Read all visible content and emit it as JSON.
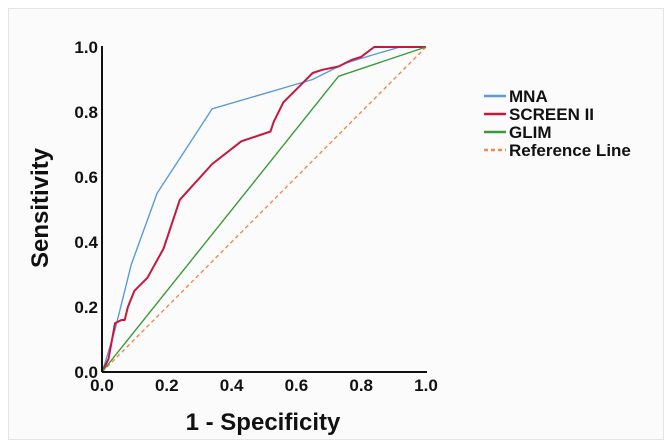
{
  "chart_data": {
    "type": "line",
    "title": "",
    "xlabel": "1 - Specificity",
    "ylabel": "Sensitivity",
    "xlim": [
      0,
      1
    ],
    "ylim": [
      0,
      1
    ],
    "x_ticks": [
      "0.0",
      "0.2",
      "0.4",
      "0.6",
      "0.8",
      "1.0"
    ],
    "y_ticks": [
      "0.0",
      "0.2",
      "0.4",
      "0.6",
      "0.8",
      "1.0"
    ],
    "grid": false,
    "legend_position": "right",
    "series": [
      {
        "name": "MNA",
        "color": "#5b9bd5",
        "x": [
          0,
          0.01,
          0.04,
          0.09,
          0.17,
          0.34,
          0.65,
          0.75,
          0.85,
          0.92,
          1.0
        ],
        "y": [
          0,
          0.03,
          0.13,
          0.33,
          0.55,
          0.81,
          0.9,
          0.95,
          0.98,
          1.0,
          1.0
        ]
      },
      {
        "name": "SCREEN II",
        "color": "#c8173e",
        "x": [
          0,
          0.02,
          0.04,
          0.06,
          0.07,
          0.08,
          0.1,
          0.14,
          0.19,
          0.24,
          0.34,
          0.43,
          0.52,
          0.53,
          0.56,
          0.58,
          0.6,
          0.62,
          0.65,
          0.68,
          0.73,
          0.77,
          0.8,
          0.84,
          0.86,
          0.91,
          0.93,
          0.96,
          1.0
        ],
        "y": [
          0,
          0.04,
          0.15,
          0.16,
          0.16,
          0.2,
          0.25,
          0.29,
          0.38,
          0.53,
          0.64,
          0.71,
          0.74,
          0.77,
          0.83,
          0.85,
          0.87,
          0.89,
          0.92,
          0.93,
          0.94,
          0.96,
          0.97,
          1.0,
          1.0,
          1.0,
          1.0,
          1.0,
          1.0
        ]
      },
      {
        "name": "GLIM",
        "color": "#3a9a3a",
        "x": [
          0,
          0.73,
          1.0
        ],
        "y": [
          0,
          0.91,
          1.0
        ]
      },
      {
        "name": "Reference Line",
        "color": "#f08a4b",
        "dashed": true,
        "x": [
          0,
          1.0
        ],
        "y": [
          0,
          1.0
        ]
      }
    ]
  }
}
